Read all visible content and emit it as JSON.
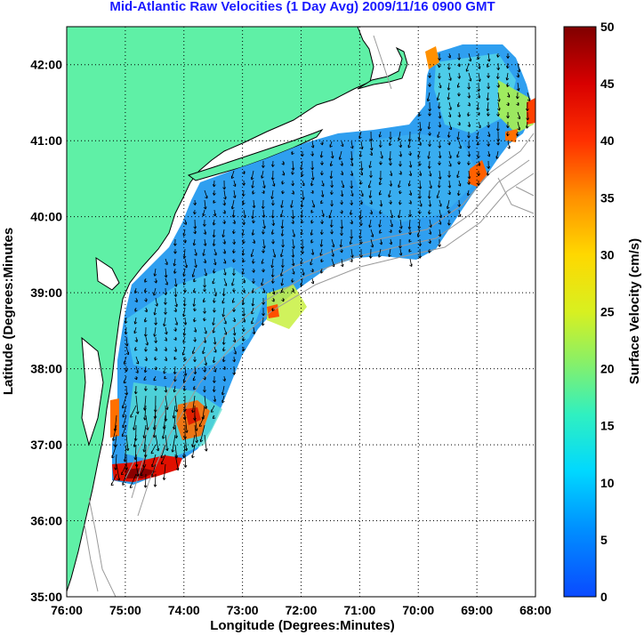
{
  "title": "Mid-Atlantic Raw Velocities (1 Day Avg) 2009/11/16 0900 GMT",
  "axes": {
    "xlabel": "Longitude (Degrees:Minutes)",
    "ylabel": "Latitude (Degrees:Minutes",
    "xticks": [
      "76:00",
      "75:00",
      "74:00",
      "73:00",
      "72:00",
      "71:00",
      "70:00",
      "69:00",
      "68:00"
    ],
    "yticks": [
      "42:00",
      "41:00",
      "40:00",
      "39:00",
      "38:00",
      "37:00",
      "36:00",
      "35:00"
    ],
    "xlim": [
      -76,
      -68
    ],
    "ylim": [
      35,
      42.5
    ],
    "grid": "dotted"
  },
  "colorbar": {
    "label": "Surface Velocity (cm/s)",
    "ticks": [
      "50",
      "45",
      "40",
      "35",
      "30",
      "25",
      "20",
      "15",
      "10",
      "5",
      "0"
    ],
    "range": [
      0,
      50
    ],
    "colormap": "jet"
  },
  "colors": {
    "land": "#5ff0a6",
    "ocean": "#ffffff",
    "title": "#1a1aff",
    "bathymetry": "#9a9a9a",
    "field_background": "#2f9ff0"
  }
}
